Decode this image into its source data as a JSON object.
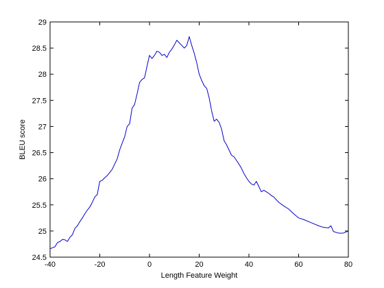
{
  "chart_data": {
    "type": "line",
    "title": "",
    "xlabel": "Length Feature Weight",
    "ylabel": "BLEU score",
    "xlim": [
      -40,
      80
    ],
    "ylim": [
      24.5,
      29
    ],
    "xticks": [
      -40,
      -20,
      0,
      20,
      40,
      60,
      80
    ],
    "yticks": [
      24.5,
      25,
      25.5,
      26,
      26.5,
      27,
      27.5,
      28,
      28.5,
      29
    ],
    "xtick_labels": [
      "-40",
      "-20",
      "0",
      "20",
      "40",
      "60",
      "80"
    ],
    "ytick_labels": [
      "24.5",
      "25",
      "25.5",
      "26",
      "26.5",
      "27",
      "27.5",
      "28",
      "28.5",
      "29"
    ],
    "grid": false,
    "legend": "none",
    "series": [
      {
        "color": "#0000cc",
        "x": [
          -40,
          -39,
          -38,
          -37,
          -36,
          -35,
          -34,
          -33,
          -32,
          -31,
          -30,
          -29,
          -28,
          -27,
          -26,
          -25,
          -24,
          -23,
          -22,
          -21,
          -20,
          -19,
          -18,
          -17,
          -16,
          -15,
          -14,
          -13,
          -12,
          -11,
          -10,
          -9,
          -8,
          -7,
          -6,
          -5,
          -4,
          -3,
          -2,
          -1,
          0,
          1,
          2,
          3,
          4,
          5,
          6,
          7,
          8,
          9,
          10,
          11,
          12,
          13,
          14,
          15,
          16,
          17,
          18,
          19,
          20,
          21,
          22,
          23,
          24,
          25,
          26,
          27,
          28,
          29,
          30,
          31,
          32,
          33,
          34,
          35,
          36,
          37,
          38,
          39,
          40,
          41,
          42,
          43,
          44,
          45,
          46,
          47,
          48,
          49,
          50,
          52,
          54,
          56,
          58,
          60,
          62,
          64,
          66,
          68,
          70,
          72,
          73,
          74,
          76,
          78,
          80
        ],
        "y": [
          24.66,
          24.68,
          24.7,
          24.78,
          24.8,
          24.84,
          24.83,
          24.8,
          24.88,
          24.93,
          25.05,
          25.1,
          25.18,
          25.25,
          25.33,
          25.4,
          25.46,
          25.55,
          25.65,
          25.7,
          25.95,
          25.97,
          26.02,
          26.06,
          26.12,
          26.18,
          26.28,
          26.38,
          26.55,
          26.68,
          26.8,
          27.0,
          27.05,
          27.35,
          27.42,
          27.62,
          27.84,
          27.9,
          27.93,
          28.15,
          28.36,
          28.3,
          28.36,
          28.44,
          28.42,
          28.36,
          28.38,
          28.32,
          28.42,
          28.48,
          28.56,
          28.65,
          28.6,
          28.55,
          28.5,
          28.55,
          28.72,
          28.55,
          28.4,
          28.22,
          28.0,
          27.88,
          27.78,
          27.73,
          27.55,
          27.3,
          27.1,
          27.14,
          27.08,
          26.95,
          26.73,
          26.65,
          26.55,
          26.45,
          26.42,
          26.35,
          26.28,
          26.2,
          26.1,
          26.02,
          25.95,
          25.9,
          25.88,
          25.95,
          25.85,
          25.75,
          25.78,
          25.75,
          25.72,
          25.68,
          25.65,
          25.55,
          25.48,
          25.42,
          25.33,
          25.25,
          25.22,
          25.18,
          25.14,
          25.1,
          25.07,
          25.06,
          25.1,
          24.99,
          24.96,
          24.96,
          25.0
        ]
      }
    ]
  }
}
